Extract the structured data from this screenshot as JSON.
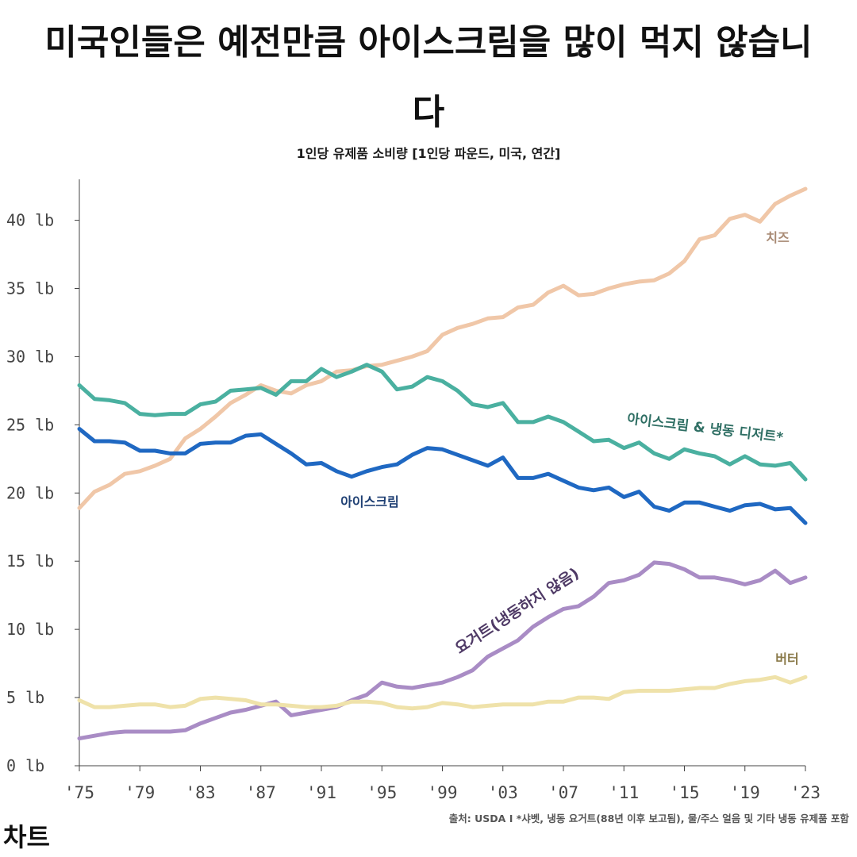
{
  "title": "미국인들은 예전만큼 아이스크림을 많이 먹지 않습니다",
  "subtitle": "1인당 유제품 소비량 [1인당 파운드, 미국, 연간]",
  "source": "출처: USDA I *샤벳, 냉동 요거트(88년 이후 보고됨), 물/주스 얼음 및 기타 냉동 유제품 포함",
  "brand": "차트",
  "chart_data": {
    "type": "line",
    "title": "미국인들은 예전만큼 아이스크림을 많이 먹지 않습니다",
    "subtitle": "1인당 유제품 소비량 [1인당 파운드, 미국, 연간]",
    "xlim": [
      1975,
      2023
    ],
    "ylim": [
      0,
      43
    ],
    "grid": false,
    "x_ticks": [
      {
        "value": 1975,
        "label": "'75"
      },
      {
        "value": 1979,
        "label": "'79"
      },
      {
        "value": 1983,
        "label": "'83"
      },
      {
        "value": 1987,
        "label": "'87"
      },
      {
        "value": 1991,
        "label": "'91"
      },
      {
        "value": 1995,
        "label": "'95"
      },
      {
        "value": 1999,
        "label": "'99"
      },
      {
        "value": 2003,
        "label": "'03"
      },
      {
        "value": 2007,
        "label": "'07"
      },
      {
        "value": 2011,
        "label": "'11"
      },
      {
        "value": 2015,
        "label": "'15"
      },
      {
        "value": 2019,
        "label": "'19"
      },
      {
        "value": 2023,
        "label": "'23"
      }
    ],
    "y_ticks": [
      {
        "value": 0,
        "label": "0 lb"
      },
      {
        "value": 5,
        "label": "5 lb"
      },
      {
        "value": 10,
        "label": "10 lb"
      },
      {
        "value": 15,
        "label": "15 lb"
      },
      {
        "value": 20,
        "label": "20 lb"
      },
      {
        "value": 25,
        "label": "25 lb"
      },
      {
        "value": 30,
        "label": "30 lb"
      },
      {
        "value": 35,
        "label": "35 lb"
      },
      {
        "value": 40,
        "label": "40 lb"
      }
    ],
    "x": [
      1975,
      1976,
      1977,
      1978,
      1979,
      1980,
      1981,
      1982,
      1983,
      1984,
      1985,
      1986,
      1987,
      1988,
      1989,
      1990,
      1991,
      1992,
      1993,
      1994,
      1995,
      1996,
      1997,
      1998,
      1999,
      2000,
      2001,
      2002,
      2003,
      2004,
      2005,
      2006,
      2007,
      2008,
      2009,
      2010,
      2011,
      2012,
      2013,
      2014,
      2015,
      2016,
      2017,
      2018,
      2019,
      2020,
      2021,
      2022,
      2023
    ],
    "series": [
      {
        "name": "치즈",
        "color": "#f0c7a8",
        "values": [
          18.9,
          20.1,
          20.6,
          21.4,
          21.6,
          22.0,
          22.5,
          24.0,
          24.7,
          25.6,
          26.6,
          27.2,
          27.9,
          27.5,
          27.3,
          27.9,
          28.2,
          28.9,
          29.0,
          29.3,
          29.4,
          29.7,
          30.0,
          30.4,
          31.6,
          32.1,
          32.4,
          32.8,
          32.9,
          33.6,
          33.8,
          34.7,
          35.2,
          34.5,
          34.6,
          35.0,
          35.3,
          35.5,
          35.6,
          36.1,
          37.0,
          38.6,
          38.9,
          40.1,
          40.4,
          39.9,
          41.2,
          41.8,
          42.3
        ]
      },
      {
        "name": "아이스크림 & 냉동 디저트*",
        "color": "#4ab0a0",
        "values": [
          27.9,
          26.9,
          26.8,
          26.6,
          25.8,
          25.7,
          25.8,
          25.8,
          26.5,
          26.7,
          27.5,
          27.6,
          27.7,
          27.2,
          28.2,
          28.2,
          29.1,
          28.5,
          28.9,
          29.4,
          28.9,
          27.6,
          27.8,
          28.5,
          28.2,
          27.5,
          26.5,
          26.3,
          26.6,
          25.2,
          25.2,
          25.6,
          25.2,
          24.5,
          23.8,
          23.9,
          23.3,
          23.7,
          22.9,
          22.5,
          23.2,
          22.9,
          22.7,
          22.1,
          22.7,
          22.1,
          22.0,
          22.2,
          21.0
        ]
      },
      {
        "name": "아이스크림",
        "color": "#1f68c2",
        "values": [
          24.7,
          23.8,
          23.8,
          23.7,
          23.1,
          23.1,
          22.9,
          22.9,
          23.6,
          23.7,
          23.7,
          24.2,
          24.3,
          23.6,
          22.9,
          22.1,
          22.2,
          21.6,
          21.2,
          21.6,
          21.9,
          22.1,
          22.8,
          23.3,
          23.2,
          22.8,
          22.4,
          22.0,
          22.6,
          21.1,
          21.1,
          21.4,
          20.9,
          20.4,
          20.2,
          20.4,
          19.7,
          20.1,
          19.0,
          18.7,
          19.3,
          19.3,
          19.0,
          18.7,
          19.1,
          19.2,
          18.8,
          18.9,
          17.8
        ]
      },
      {
        "name": "요거트(냉동하지 않음)",
        "color": "#a98cc5",
        "values": [
          2.0,
          2.2,
          2.4,
          2.5,
          2.5,
          2.5,
          2.5,
          2.6,
          3.1,
          3.5,
          3.9,
          4.1,
          4.4,
          4.7,
          3.7,
          3.9,
          4.1,
          4.3,
          4.8,
          5.2,
          6.1,
          5.8,
          5.7,
          5.9,
          6.1,
          6.5,
          7.0,
          8.0,
          8.6,
          9.2,
          10.2,
          10.9,
          11.5,
          11.7,
          12.4,
          13.4,
          13.6,
          14.0,
          14.9,
          14.8,
          14.4,
          13.8,
          13.8,
          13.6,
          13.3,
          13.6,
          14.3,
          13.4,
          13.8
        ]
      },
      {
        "name": "버터",
        "color": "#efe2aa",
        "values": [
          4.8,
          4.3,
          4.3,
          4.4,
          4.5,
          4.5,
          4.3,
          4.4,
          4.9,
          5.0,
          4.9,
          4.8,
          4.5,
          4.5,
          4.4,
          4.3,
          4.3,
          4.4,
          4.7,
          4.7,
          4.6,
          4.3,
          4.2,
          4.3,
          4.6,
          4.5,
          4.3,
          4.4,
          4.5,
          4.5,
          4.5,
          4.7,
          4.7,
          5.0,
          5.0,
          4.9,
          5.4,
          5.5,
          5.5,
          5.5,
          5.6,
          5.7,
          5.7,
          6.0,
          6.2,
          6.3,
          6.5,
          6.1,
          6.5
        ]
      }
    ]
  }
}
